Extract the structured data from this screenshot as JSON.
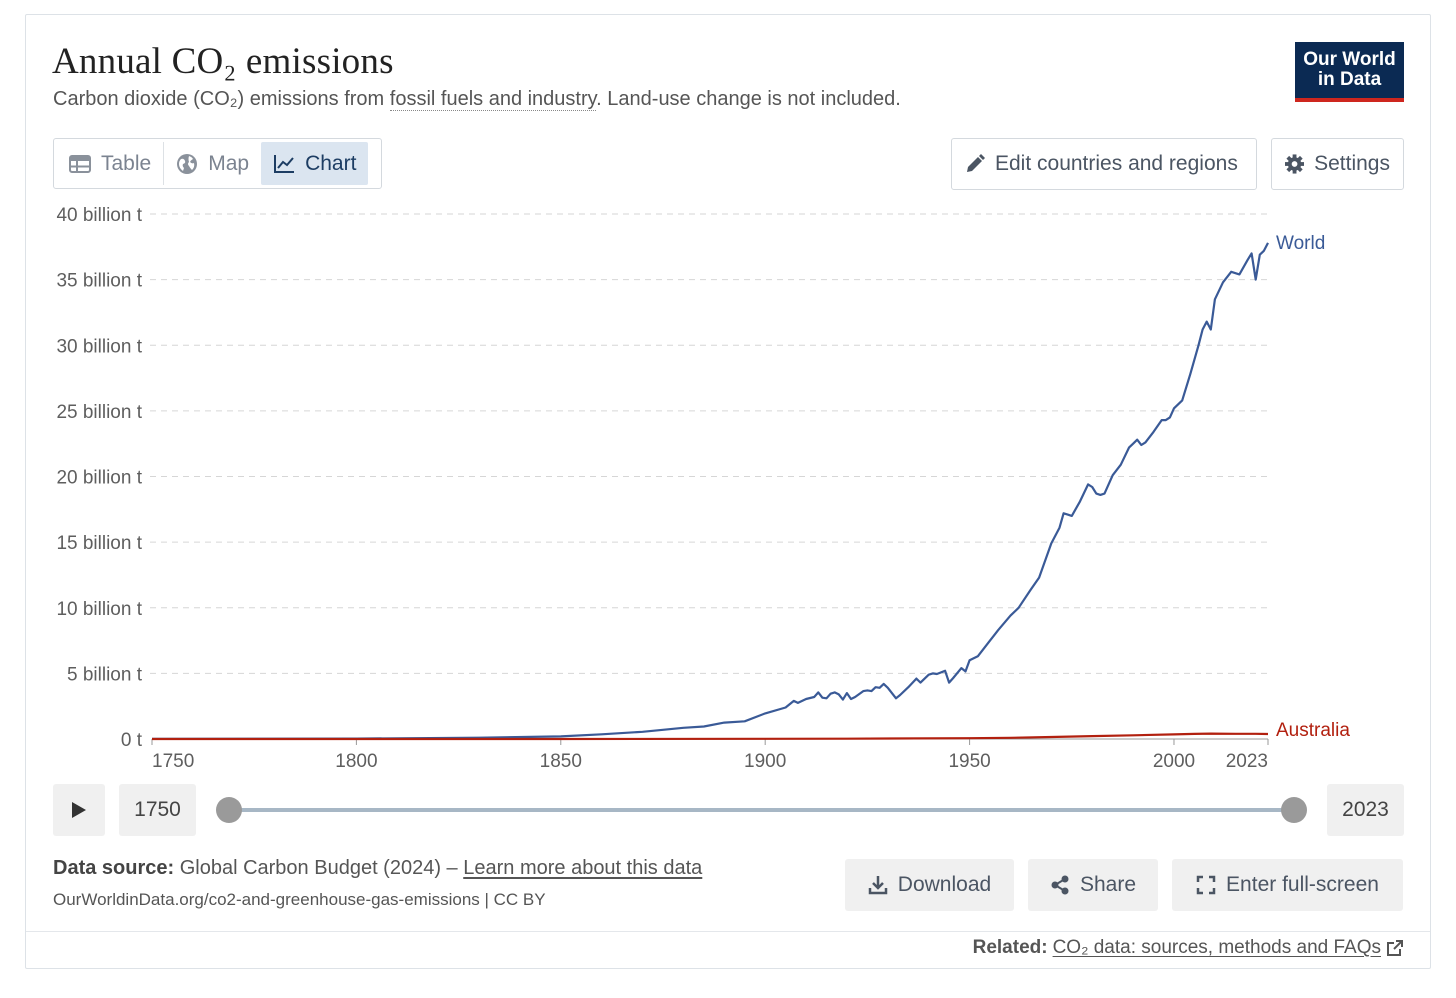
{
  "header": {
    "title": "Annual CO₂ emissions",
    "subtitle_pre": "Carbon dioxide (CO₂) emissions from ",
    "subtitle_link": "fossil fuels and industry",
    "subtitle_post": ". Land-use change is not included."
  },
  "logo": {
    "line1": "Our World",
    "line2": "in Data"
  },
  "tabs": [
    {
      "label": "Table"
    },
    {
      "label": "Map"
    },
    {
      "label": "Chart"
    }
  ],
  "toolbar": {
    "edit_label": "Edit countries and regions",
    "settings_label": "Settings"
  },
  "timeline": {
    "start_year": "1750",
    "end_year": "2023"
  },
  "footer": {
    "source_label": "Data source:",
    "source_text": " Global Carbon Budget (2024) – ",
    "learn_more": "Learn more about this data",
    "url": "OurWorldinData.org/co2-and-greenhouse-gas-emissions | CC BY",
    "download_label": "Download",
    "share_label": "Share",
    "fullscreen_label": "Enter full-screen",
    "related_label": "Related:",
    "related_link": "CO₂ data: sources, methods and FAQs"
  },
  "colors": {
    "world": "#3a5a97",
    "australia": "#b2200f",
    "grid": "#d6d6d6",
    "axis_text": "#5e5e5e"
  },
  "chart_data": {
    "type": "line",
    "title": "Annual CO₂ emissions",
    "xlabel": "",
    "ylabel": "",
    "xlim": [
      1750,
      2023
    ],
    "ylim": [
      0,
      40
    ],
    "y_unit": "billion t",
    "y_ticks": [
      {
        "v": 0,
        "label": "0 t"
      },
      {
        "v": 5,
        "label": "5 billion t"
      },
      {
        "v": 10,
        "label": "10 billion t"
      },
      {
        "v": 15,
        "label": "15 billion t"
      },
      {
        "v": 20,
        "label": "20 billion t"
      },
      {
        "v": 25,
        "label": "25 billion t"
      },
      {
        "v": 30,
        "label": "30 billion t"
      },
      {
        "v": 35,
        "label": "35 billion t"
      },
      {
        "v": 40,
        "label": "40 billion t"
      }
    ],
    "x_ticks": [
      1750,
      1800,
      1850,
      1900,
      1950,
      2000,
      2023
    ],
    "grid": "horizontal dashed",
    "legend": "line-end labels",
    "series": [
      {
        "name": "World",
        "color": "#3a5a97",
        "x": [
          1750,
          1800,
          1830,
          1850,
          1860,
          1870,
          1875,
          1880,
          1885,
          1890,
          1895,
          1900,
          1905,
          1907,
          1908,
          1910,
          1912,
          1913,
          1914,
          1915,
          1916,
          1917,
          1918,
          1919,
          1920,
          1921,
          1922,
          1924,
          1925,
          1926,
          1927,
          1928,
          1929,
          1930,
          1931,
          1932,
          1933,
          1935,
          1937,
          1938,
          1940,
          1941,
          1942,
          1944,
          1945,
          1946,
          1948,
          1949,
          1950,
          1952,
          1955,
          1957,
          1960,
          1962,
          1965,
          1967,
          1970,
          1972,
          1973,
          1974,
          1975,
          1977,
          1979,
          1980,
          1981,
          1982,
          1983,
          1985,
          1987,
          1989,
          1990,
          1991,
          1992,
          1993,
          1995,
          1997,
          1998,
          1999,
          2000,
          2002,
          2004,
          2006,
          2007,
          2008,
          2009,
          2010,
          2012,
          2014,
          2016,
          2018,
          2019,
          2020,
          2021,
          2022,
          2023
        ],
        "y": [
          0.01,
          0.03,
          0.1,
          0.2,
          0.36,
          0.55,
          0.7,
          0.85,
          0.95,
          1.25,
          1.35,
          1.95,
          2.4,
          2.9,
          2.75,
          3.05,
          3.2,
          3.55,
          3.15,
          3.1,
          3.45,
          3.55,
          3.4,
          3.0,
          3.5,
          3.05,
          3.2,
          3.65,
          3.7,
          3.65,
          3.95,
          3.9,
          4.2,
          3.9,
          3.5,
          3.1,
          3.35,
          3.95,
          4.6,
          4.3,
          4.9,
          5.0,
          4.95,
          5.2,
          4.3,
          4.65,
          5.4,
          5.15,
          6.0,
          6.3,
          7.5,
          8.3,
          9.4,
          10.0,
          11.4,
          12.3,
          14.9,
          16.1,
          17.2,
          17.1,
          17.0,
          18.1,
          19.4,
          19.2,
          18.7,
          18.6,
          18.7,
          20.1,
          20.9,
          22.2,
          22.5,
          22.8,
          22.4,
          22.6,
          23.4,
          24.3,
          24.3,
          24.5,
          25.2,
          25.8,
          27.8,
          30.0,
          31.2,
          31.8,
          31.2,
          33.5,
          34.8,
          35.6,
          35.4,
          36.5,
          37.0,
          35.0,
          36.9,
          37.2,
          37.8
        ]
      },
      {
        "name": "Australia",
        "color": "#b2200f",
        "x": [
          1750,
          1850,
          1900,
          1920,
          1950,
          1960,
          1970,
          1980,
          1990,
          2000,
          2005,
          2009,
          2015,
          2020,
          2023
        ],
        "y": [
          0,
          0.002,
          0.012,
          0.025,
          0.06,
          0.09,
          0.15,
          0.22,
          0.28,
          0.35,
          0.39,
          0.41,
          0.4,
          0.4,
          0.38
        ]
      }
    ]
  }
}
